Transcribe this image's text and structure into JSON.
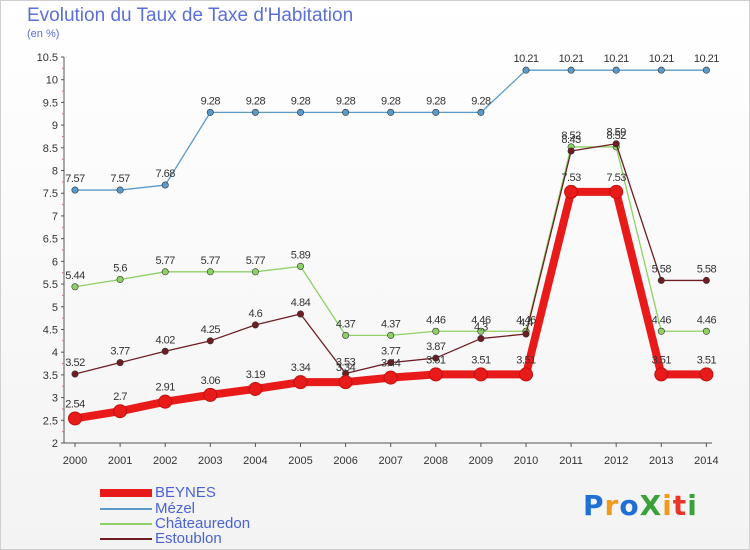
{
  "title": "Evolution du Taux de Taxe d'Habitation",
  "subtitle": "(en %)",
  "logo": {
    "text": "ProXiti",
    "colors": [
      "#1f6fd6",
      "#f29a1a",
      "#1f6fd6",
      "#3aa13a",
      "#f29a1a",
      "#e8362a",
      "#3aa13a"
    ]
  },
  "chart_data": {
    "type": "line",
    "x": [
      2000,
      2001,
      2002,
      2003,
      2004,
      2005,
      2006,
      2007,
      2008,
      2009,
      2010,
      2011,
      2012,
      2013,
      2014
    ],
    "ylim": [
      2,
      10.5
    ],
    "yticks": [
      "2",
      "2.5",
      "3",
      "3.5",
      "4",
      "4.5",
      "5",
      "5.5",
      "6",
      "6.5",
      "7",
      "7.5",
      "8",
      "8.5",
      "9",
      "9.5",
      "10",
      "10.5"
    ],
    "grid": false,
    "legend_position": "bottom-left",
    "series": [
      {
        "name": "BEYNES",
        "color": "#e81a1a",
        "values": [
          2.54,
          2.7,
          2.91,
          3.06,
          3.19,
          3.34,
          3.34,
          3.44,
          3.51,
          3.51,
          3.51,
          7.53,
          7.53,
          3.51,
          3.51
        ],
        "labels": [
          "2.54",
          "2.7",
          "2.91",
          "3.06",
          "3.19",
          "3.34",
          "3.34",
          "3.44",
          "3.51",
          "3.51",
          "3.51",
          "7.53",
          "7.53",
          "3.51",
          "3.51"
        ]
      },
      {
        "name": "Mézel",
        "color": "#5b9ac8",
        "values": [
          7.57,
          7.57,
          7.68,
          9.28,
          9.28,
          9.28,
          9.28,
          9.28,
          9.28,
          9.28,
          10.21,
          10.21,
          10.21,
          10.21,
          10.21
        ],
        "labels": [
          "7.57",
          "7.57",
          "7.68",
          "9.28",
          "9.28",
          "9.28",
          "9.28",
          "9.28",
          "9.28",
          "9.28",
          "10.21",
          "10.21",
          "10.21",
          "10.21",
          "10.21"
        ]
      },
      {
        "name": "Châteauredon",
        "color": "#8fd066",
        "values": [
          5.44,
          5.6,
          5.77,
          5.77,
          5.77,
          5.89,
          4.37,
          4.37,
          4.46,
          4.46,
          4.46,
          8.52,
          8.52,
          4.46,
          4.46
        ],
        "labels": [
          "5.44",
          "5.6",
          "5.77",
          "5.77",
          "5.77",
          "5.89",
          "4.37",
          "4.37",
          "4.46",
          "4.46",
          "4.46",
          "8.52",
          "8.52",
          "4.46",
          "4.46"
        ]
      },
      {
        "name": "Estoublon",
        "color": "#6e1e22",
        "values": [
          3.52,
          3.77,
          4.02,
          4.25,
          4.6,
          4.84,
          3.53,
          3.77,
          3.87,
          4.3,
          4.4,
          8.43,
          8.59,
          5.58,
          5.58
        ],
        "labels": [
          "3.52",
          "3.77",
          "4.02",
          "4.25",
          "4.6",
          "4.84",
          "3.53",
          "3.77",
          "3.87",
          "4.3",
          "4.4",
          "8.43",
          "8.59",
          "5.58",
          "5.58"
        ]
      }
    ]
  }
}
